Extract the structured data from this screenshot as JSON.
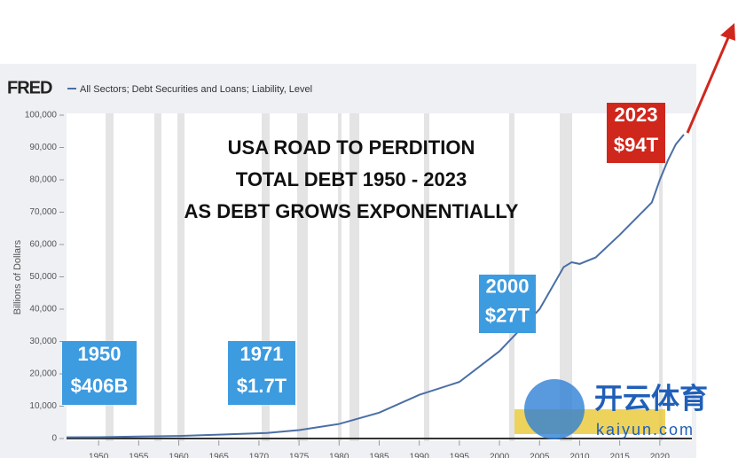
{
  "chart_data": {
    "type": "line",
    "logo": "FRED",
    "title_lines": [
      "USA ROAD TO PERDITION",
      "TOTAL DEBT 1950 - 2023",
      "AS DEBT GROWS EXPONENTIALLY"
    ],
    "ylabel": "Billions of Dollars",
    "series": [
      {
        "name": "All Sectors; Debt Securities and Loans; Liability, Level",
        "color": "#4a6fa5",
        "x": [
          1946,
          1950,
          1955,
          1960,
          1965,
          1971,
          1975,
          1980,
          1985,
          1990,
          1995,
          2000,
          2005,
          2008,
          2009,
          2010,
          2012,
          2015,
          2019,
          2020,
          2021,
          2022,
          2023
        ],
        "values": [
          360,
          406,
          600,
          800,
          1200,
          1700,
          2600,
          4500,
          8000,
          13500,
          17500,
          27000,
          40000,
          53000,
          54500,
          54000,
          56000,
          63000,
          73000,
          80000,
          86000,
          91000,
          94000
        ]
      }
    ],
    "xlim": [
      1946,
      2024
    ],
    "xticks": [
      1950,
      1955,
      1960,
      1965,
      1970,
      1975,
      1980,
      1985,
      1990,
      1995,
      2000,
      2005,
      2010,
      2015,
      2020
    ],
    "ylim": [
      0,
      100000
    ],
    "yticks": [
      0,
      {
        "value": 10000,
        "label": "10,000"
      },
      {
        "value": 20000,
        "label": "20,000"
      },
      {
        "value": 30000,
        "label": "30,000"
      },
      {
        "value": 40000,
        "label": "40,000"
      },
      {
        "value": 50000,
        "label": "50,000"
      },
      {
        "value": 60000,
        "label": "60,000"
      },
      {
        "value": 70000,
        "label": "70,000"
      },
      {
        "value": 80000,
        "label": "80,000"
      },
      {
        "value": 90000,
        "label": "90,000"
      },
      {
        "value": 100000,
        "label": "100,000"
      }
    ],
    "annotations": [
      {
        "lines": [
          "1950",
          "$406B"
        ],
        "color": "#3d9be0"
      },
      {
        "lines": [
          "1971",
          "$1.7T"
        ],
        "color": "#3d9be0"
      },
      {
        "lines": [
          "2000",
          "$27T"
        ],
        "color": "#3d9be0"
      },
      {
        "lines": [
          "2023",
          "$94T"
        ],
        "color": "#d0271d"
      }
    ],
    "watermark": [
      "开云体育",
      "kaiyun.com"
    ]
  }
}
